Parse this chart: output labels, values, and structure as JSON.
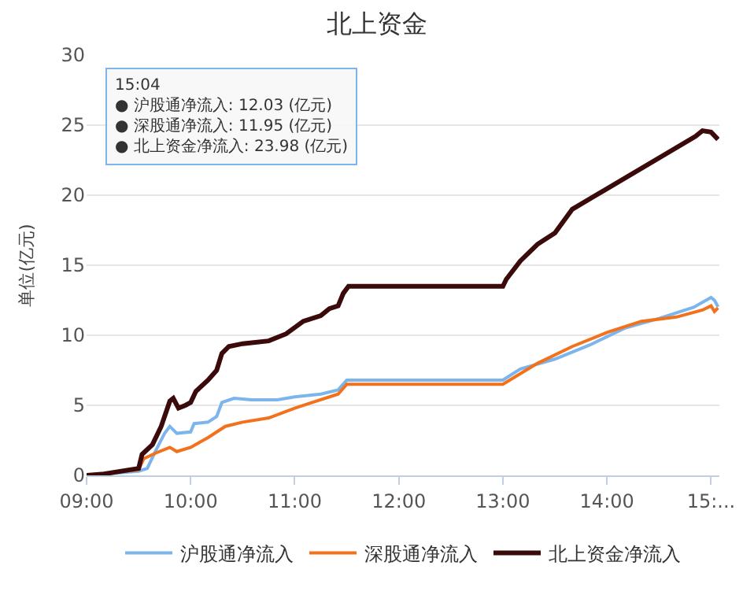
{
  "chart_data": {
    "type": "line",
    "title": "北上资金",
    "ylabel": "单位(亿元)",
    "xlim": [
      9,
      15.08
    ],
    "ylim": [
      0,
      30
    ],
    "xticks": [
      {
        "value": 9,
        "label": "09:00"
      },
      {
        "value": 10,
        "label": "10:00"
      },
      {
        "value": 11,
        "label": "11:00"
      },
      {
        "value": 12,
        "label": "12:00"
      },
      {
        "value": 13,
        "label": "13:00"
      },
      {
        "value": 14,
        "label": "14:00"
      },
      {
        "value": 15,
        "label": "15:..."
      }
    ],
    "yticks": [
      0,
      5,
      10,
      15,
      20,
      25,
      30
    ],
    "grid": "y",
    "legend": "bottom",
    "marker": "none",
    "line_style": "solid",
    "annotations": [
      "15:04\n● 沪股通净流入: 12.03 (亿元)\n● 深股通净流入: 11.95 (亿元)\n● 北上资金净流入: 23.98 (亿元)"
    ],
    "series": [
      {
        "name": "沪股通净流入",
        "color": "#7cb5ec",
        "x": [
          9,
          9.5,
          9.583,
          9.667,
          9.75,
          9.8,
          9.867,
          10,
          10.033,
          10.167,
          10.25,
          10.3,
          10.417,
          10.583,
          10.833,
          11,
          11.25,
          11.417,
          11.5,
          13,
          13.167,
          13.5,
          13.833,
          14.167,
          14.5,
          14.833,
          15,
          15.033,
          15.067
        ],
        "values": [
          0,
          0.3,
          0.5,
          1.8,
          3.0,
          3.5,
          3.0,
          3.1,
          3.7,
          3.8,
          4.2,
          5.2,
          5.5,
          5.4,
          5.4,
          5.6,
          5.8,
          6.1,
          6.8,
          6.8,
          7.6,
          8.3,
          9.3,
          10.5,
          11.2,
          12.0,
          12.7,
          12.5,
          12.03
        ]
      },
      {
        "name": "深股通净流入",
        "color": "#f2711c",
        "x": [
          9,
          9.5,
          9.55,
          9.667,
          9.8,
          9.867,
          10,
          10.167,
          10.333,
          10.5,
          10.75,
          11,
          11.167,
          11.417,
          11.5,
          13,
          13.333,
          13.667,
          14,
          14.333,
          14.667,
          14.917,
          15,
          15.033,
          15.067
        ],
        "values": [
          0,
          0.4,
          1.2,
          1.6,
          2.0,
          1.7,
          2.0,
          2.7,
          3.5,
          3.8,
          4.1,
          4.8,
          5.2,
          5.8,
          6.5,
          6.5,
          8.0,
          9.2,
          10.2,
          11.0,
          11.3,
          11.8,
          12.1,
          11.7,
          11.95
        ]
      },
      {
        "name": "北上资金净流入",
        "color": "#3b0a0a",
        "x": [
          9,
          9.167,
          9.417,
          9.5,
          9.533,
          9.633,
          9.717,
          9.8,
          9.833,
          9.883,
          9.95,
          10,
          10.05,
          10.167,
          10.25,
          10.3,
          10.367,
          10.5,
          10.75,
          10.917,
          11.083,
          11.25,
          11.333,
          11.417,
          11.467,
          11.517,
          13,
          13.033,
          13.167,
          13.333,
          13.5,
          13.667,
          14.85,
          14.917,
          15,
          15.067
        ],
        "values": [
          0,
          0.1,
          0.4,
          0.5,
          1.5,
          2.2,
          3.5,
          5.3,
          5.5,
          4.8,
          5.0,
          5.2,
          6.0,
          6.8,
          7.5,
          8.7,
          9.2,
          9.4,
          9.6,
          10.1,
          11.0,
          11.4,
          11.9,
          12.1,
          13.0,
          13.5,
          13.5,
          14.0,
          15.3,
          16.5,
          17.3,
          19.0,
          24.2,
          24.6,
          24.5,
          23.98
        ]
      }
    ]
  }
}
